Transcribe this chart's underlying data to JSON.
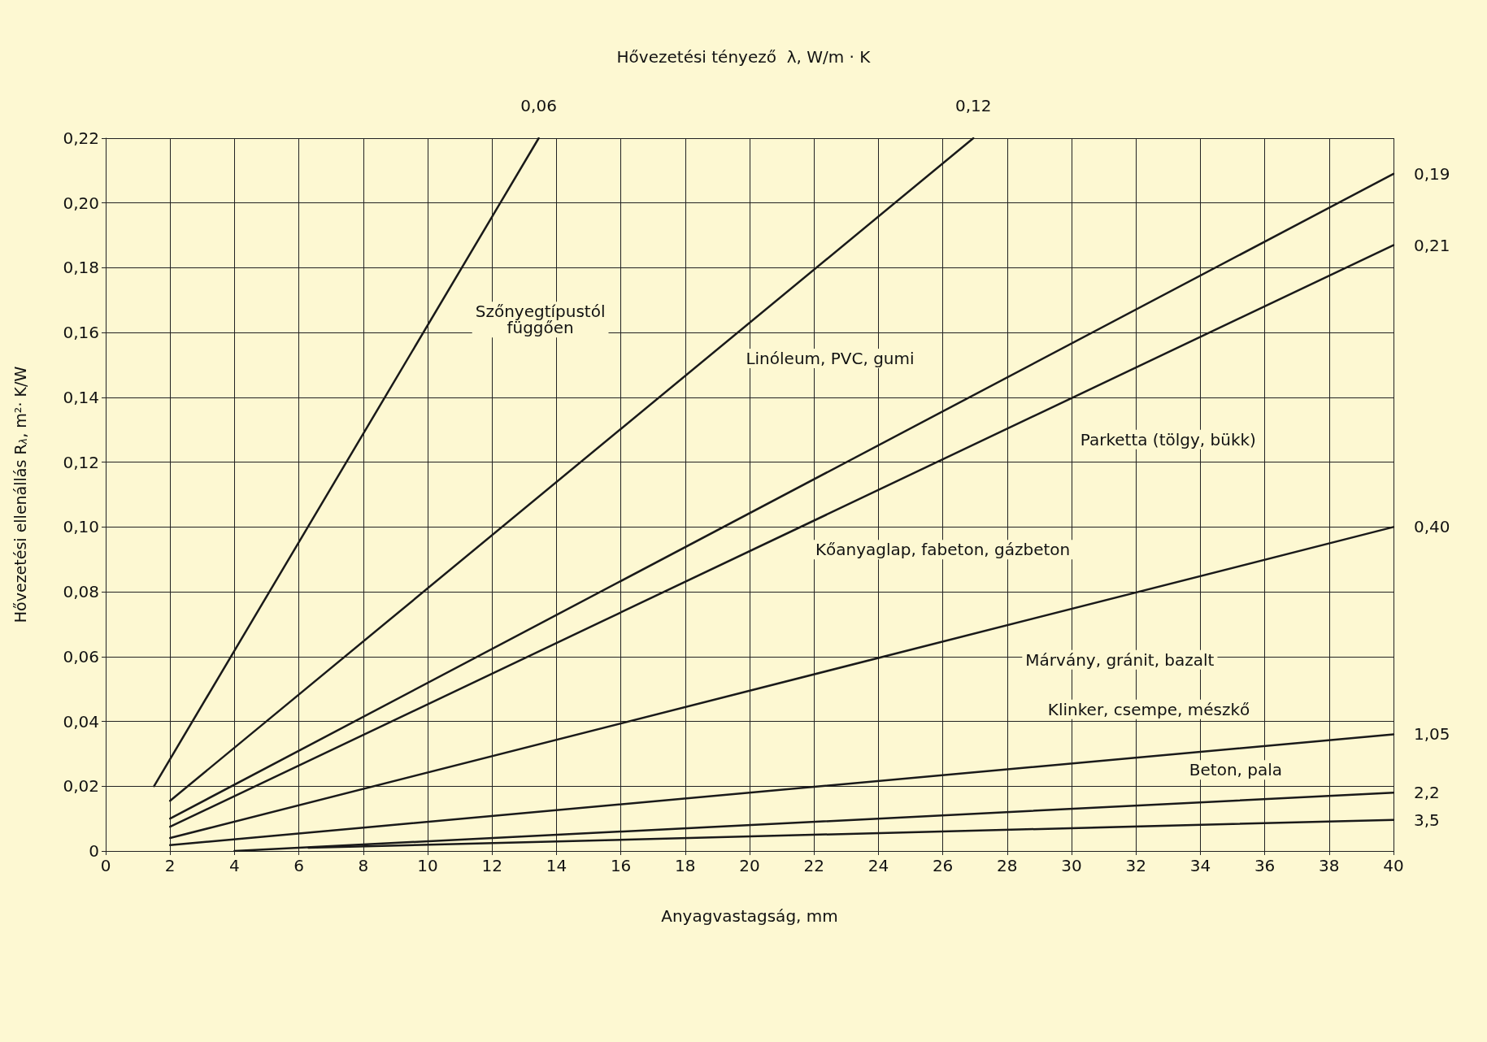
{
  "chart_data": {
    "type": "line",
    "title": "Hővezetési tényező  λ, W/m · K",
    "xlabel": "Anyagvastagság, mm",
    "ylabel": "Hővezetési ellenállás R$_{λ}$, m²· K/W",
    "xlim": [
      0,
      40
    ],
    "xticks": [
      0,
      2,
      4,
      6,
      8,
      10,
      12,
      14,
      16,
      18,
      20,
      22,
      24,
      26,
      28,
      30,
      32,
      34,
      36,
      38,
      40
    ],
    "ylim": [
      0,
      0.22
    ],
    "yticks": [
      {
        "value": 0,
        "label": "0"
      },
      {
        "value": 0.02,
        "label": "0,02"
      },
      {
        "value": 0.04,
        "label": "0,04"
      },
      {
        "value": 0.06,
        "label": "0,06"
      },
      {
        "value": 0.08,
        "label": "0,08"
      },
      {
        "value": 0.1,
        "label": "0,10"
      },
      {
        "value": 0.12,
        "label": "0,12"
      },
      {
        "value": 0.14,
        "label": "0,14"
      },
      {
        "value": 0.16,
        "label": "0,16"
      },
      {
        "value": 0.18,
        "label": "0,18"
      },
      {
        "value": 0.2,
        "label": "0,20"
      },
      {
        "value": 0.22,
        "label": "0,22"
      }
    ],
    "grid": true,
    "legend": false,
    "marker": "none",
    "line_style": "solid",
    "series": [
      {
        "name": "0,06",
        "color": "#1a1a1a",
        "x": [
          1.5,
          13.45
        ],
        "values": [
          0.02,
          0.22
        ]
      },
      {
        "name": "0,12",
        "color": "#1a1a1a",
        "x": [
          2,
          26.95
        ],
        "values": [
          0.0155,
          0.22
        ]
      },
      {
        "name": "0,19",
        "color": "#1a1a1a",
        "x": [
          2,
          40
        ],
        "values": [
          0.01,
          0.209
        ]
      },
      {
        "name": "0,21",
        "color": "#1a1a1a",
        "x": [
          2,
          40
        ],
        "values": [
          0.0075,
          0.187
        ]
      },
      {
        "name": "0,40",
        "color": "#1a1a1a",
        "x": [
          2,
          40
        ],
        "values": [
          0.004,
          0.1
        ]
      },
      {
        "name": "1,05",
        "color": "#1a1a1a",
        "x": [
          2,
          40
        ],
        "values": [
          0.0018,
          0.036
        ]
      },
      {
        "name": "2,2",
        "color": "#1a1a1a",
        "x": [
          4,
          40
        ],
        "values": [
          0,
          0.018
        ]
      },
      {
        "name": "3,5",
        "color": "#1a1a1a",
        "x": [
          6.3,
          40
        ],
        "values": [
          0.001,
          0.0096
        ]
      }
    ],
    "annotations": [
      "Szőnyegtípustól\nfüggően",
      "Linóleum, PVC, gumi",
      "Parketta (tölgy, bükk)",
      "Kőanyaglap, fabeton, gázbeton",
      "Márvány, gránit, bazalt",
      "Klinker, csempe, mészkő",
      "Beton, pala"
    ]
  }
}
